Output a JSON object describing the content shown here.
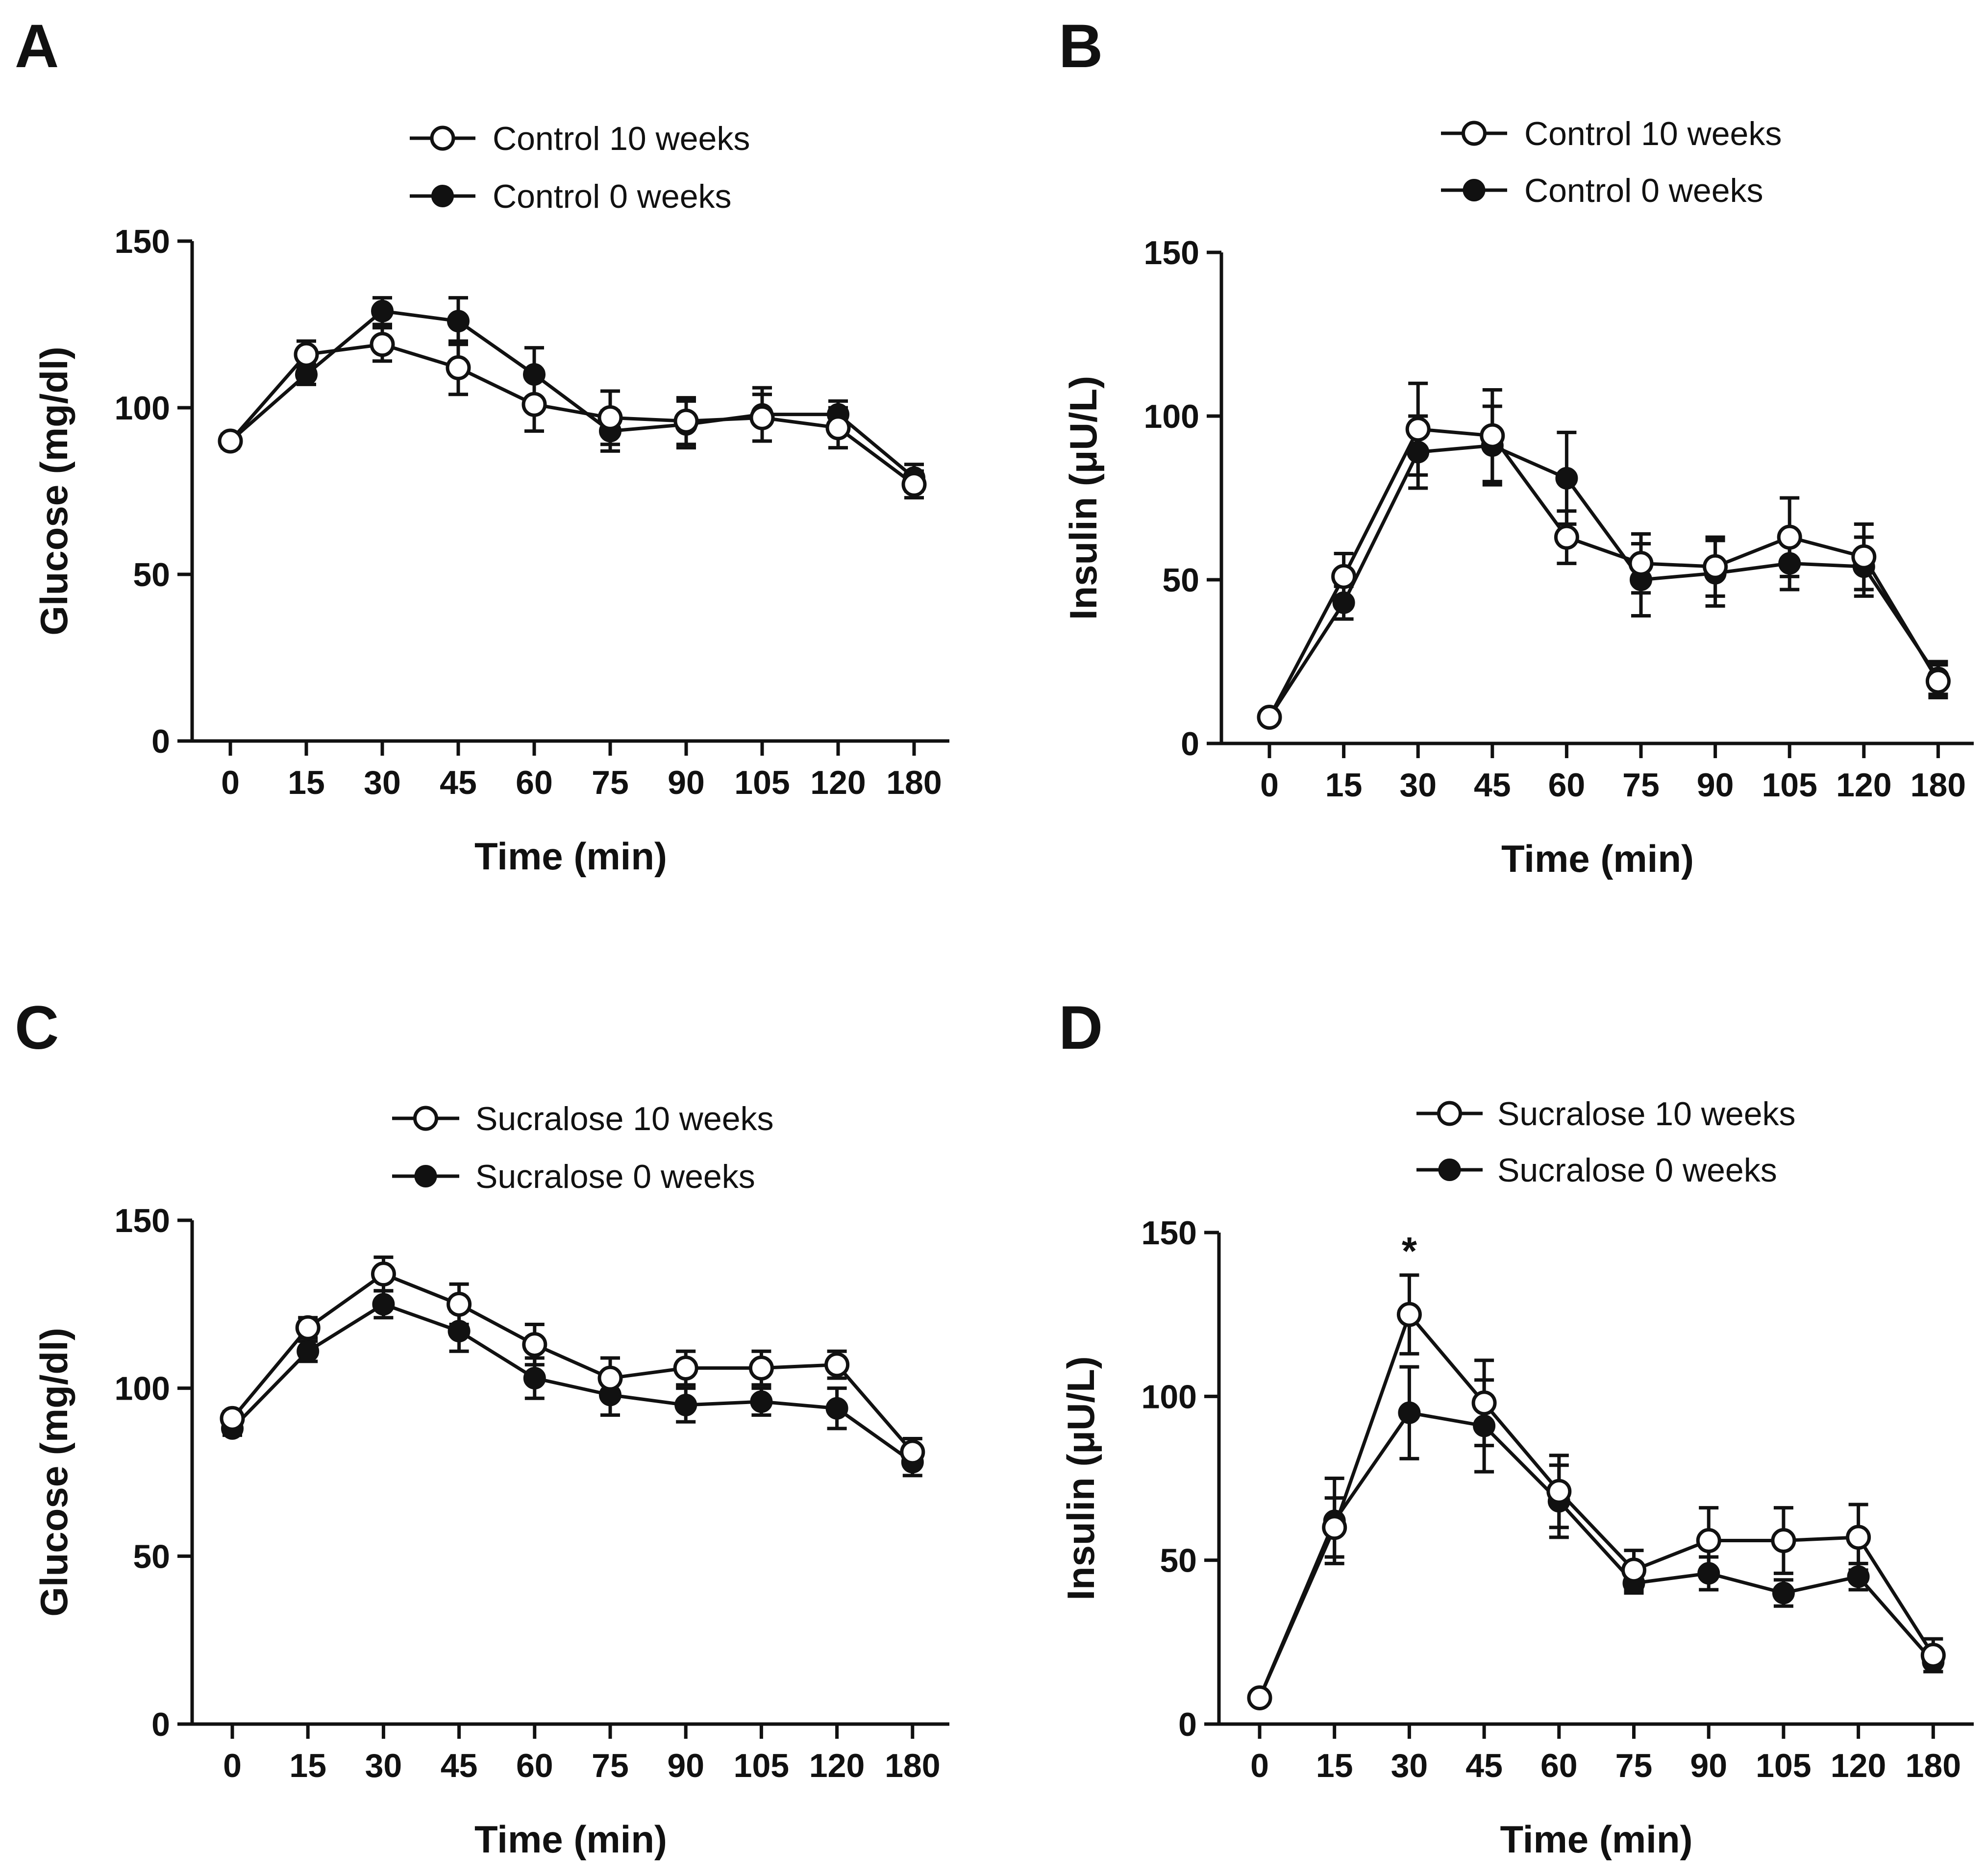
{
  "figure": {
    "description_panels": [
      "A",
      "B",
      "C",
      "D"
    ]
  },
  "chart_data": [
    {
      "panel": "A",
      "type": "line",
      "categories": [
        "0",
        "15",
        "30",
        "45",
        "60",
        "75",
        "90",
        "105",
        "120",
        "180"
      ],
      "xlabel": "Time (min)",
      "ylabel": "Glucose (mg/dl)",
      "ylim": [
        0,
        150
      ],
      "yticks": [
        0,
        50,
        100,
        150
      ],
      "legend_position": "top-center",
      "series": [
        {
          "name": "Control 10 weeks",
          "marker": "open-circle",
          "values": [
            90,
            116,
            119,
            112,
            101,
            97,
            96,
            97,
            94,
            77
          ],
          "errors": [
            2,
            4,
            5,
            8,
            8,
            8,
            7,
            7,
            6,
            4
          ]
        },
        {
          "name": "Control 0 weeks",
          "marker": "filled-circle",
          "values": [
            90,
            110,
            129,
            126,
            110,
            93,
            95,
            98,
            98,
            79
          ],
          "errors": [
            2,
            3,
            4,
            7,
            8,
            6,
            7,
            8,
            4,
            4
          ]
        }
      ]
    },
    {
      "panel": "B",
      "type": "line",
      "categories": [
        "0",
        "15",
        "30",
        "45",
        "60",
        "75",
        "90",
        "105",
        "120",
        "180"
      ],
      "xlabel": "Time (min)",
      "ylabel": "Insulin (μU/L)",
      "ylim": [
        0,
        150
      ],
      "yticks": [
        0,
        50,
        100,
        150
      ],
      "legend_position": "top-center",
      "series": [
        {
          "name": "Control 10 weeks",
          "marker": "open-circle",
          "values": [
            8,
            51,
            96,
            94,
            63,
            55,
            54,
            63,
            57,
            19
          ],
          "errors": [
            1,
            7,
            14,
            14,
            8,
            9,
            9,
            12,
            10,
            5
          ]
        },
        {
          "name": "Control 0 weeks",
          "marker": "filled-circle",
          "values": [
            8,
            43,
            89,
            91,
            81,
            50,
            52,
            55,
            54,
            20
          ],
          "errors": [
            1,
            5,
            11,
            12,
            14,
            11,
            10,
            8,
            9,
            5
          ]
        }
      ]
    },
    {
      "panel": "C",
      "type": "line",
      "categories": [
        "0",
        "15",
        "30",
        "45",
        "60",
        "75",
        "90",
        "105",
        "120",
        "180"
      ],
      "xlabel": "Time (min)",
      "ylabel": "Glucose (mg/dl)",
      "ylim": [
        0,
        150
      ],
      "yticks": [
        0,
        50,
        100,
        150
      ],
      "legend_position": "top-center",
      "series": [
        {
          "name": "Sucralose 10 weeks",
          "marker": "open-circle",
          "values": [
            91,
            118,
            134,
            125,
            113,
            103,
            106,
            106,
            107,
            81
          ],
          "errors": [
            2,
            3,
            5,
            6,
            6,
            6,
            5,
            5,
            4,
            4
          ]
        },
        {
          "name": "Sucralose 0 weeks",
          "marker": "filled-circle",
          "values": [
            88,
            111,
            125,
            117,
            103,
            98,
            95,
            96,
            94,
            78
          ],
          "errors": [
            2,
            3,
            4,
            6,
            6,
            6,
            5,
            4,
            6,
            4
          ]
        }
      ]
    },
    {
      "panel": "D",
      "type": "line",
      "categories": [
        "0",
        "15",
        "30",
        "45",
        "60",
        "75",
        "90",
        "105",
        "120",
        "180"
      ],
      "xlabel": "Time (min)",
      "ylabel": "Insulin (μU/L)",
      "ylim": [
        0,
        150
      ],
      "yticks": [
        0,
        50,
        100,
        150
      ],
      "legend_position": "top-center",
      "annotations": [
        {
          "text": "*",
          "category": "30"
        }
      ],
      "series": [
        {
          "name": "Sucralose 10 weeks",
          "marker": "open-circle",
          "values": [
            8,
            60,
            125,
            98,
            71,
            47,
            56,
            56,
            57,
            21
          ],
          "errors": [
            1,
            9,
            12,
            13,
            11,
            6,
            10,
            10,
            10,
            5
          ]
        },
        {
          "name": "Sucralose 0 weeks",
          "marker": "filled-circle",
          "values": [
            8,
            62,
            95,
            91,
            68,
            43,
            46,
            40,
            45,
            19
          ],
          "errors": [
            1,
            13,
            14,
            14,
            11,
            3,
            5,
            4,
            4,
            3
          ]
        }
      ]
    }
  ]
}
